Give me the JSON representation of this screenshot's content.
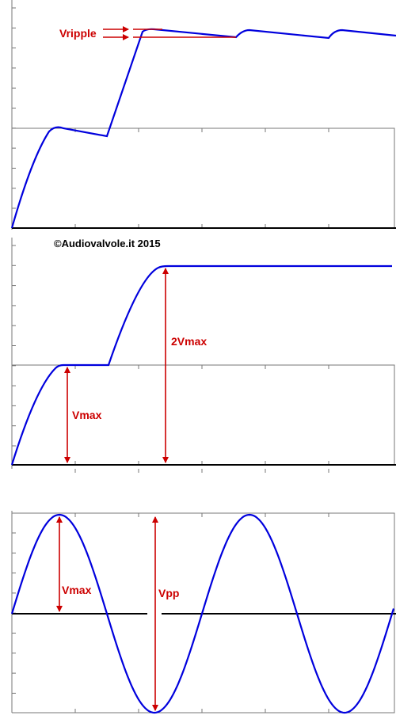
{
  "labels": {
    "ripple": "Vripple",
    "copyright": "©Audiovalvole.it 2015",
    "doubler_peak": "2Vmax",
    "doubler_vmax": "Vmax",
    "sine_vmax": "Vmax",
    "sine_vpp": "Vpp"
  }
}
